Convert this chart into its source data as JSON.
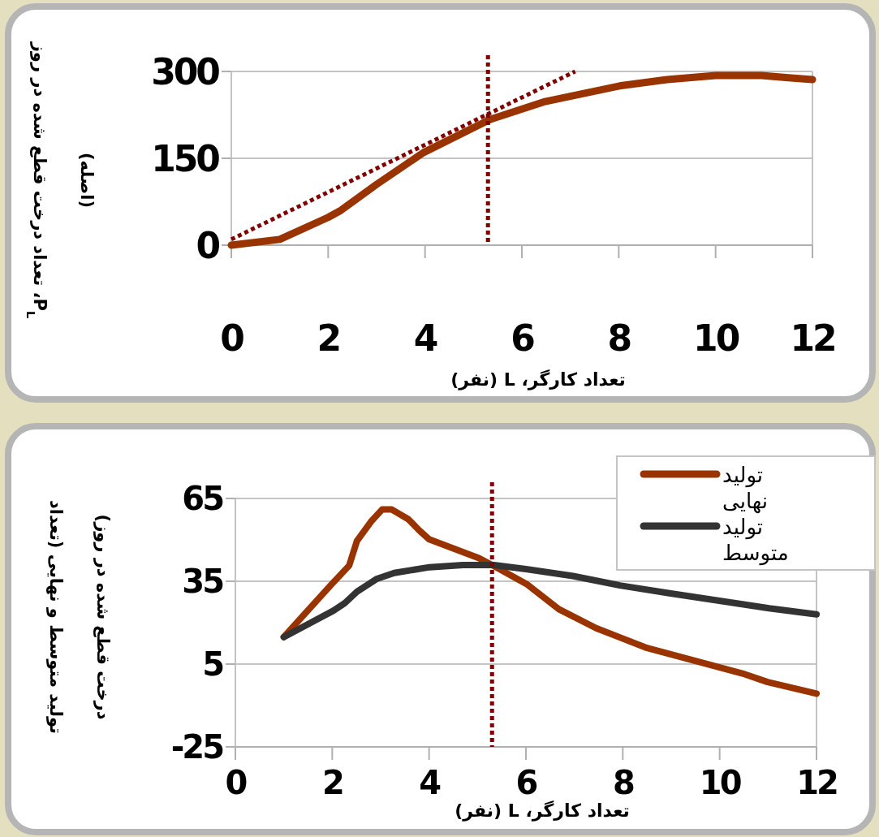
{
  "chart_data": [
    {
      "type": "line",
      "xlabel": "تعداد کارگر، L (نفر)",
      "ylabel": "P$_{L}$، تعداد درخت قطع شده در روز\n(اصله)",
      "xlim": [
        0,
        12
      ],
      "ylim": [
        0,
        300
      ],
      "xticks": [
        0,
        2,
        4,
        6,
        8,
        10,
        12
      ],
      "yticks": [
        0,
        150,
        300
      ],
      "grid": "y",
      "series": [
        {
          "color": "#993300",
          "x": [
            0,
            1,
            2,
            2.26,
            3,
            3.97,
            5.34,
            6.48,
            8.02,
            9,
            10,
            10.95,
            11.5,
            12
          ],
          "values": [
            0,
            10,
            48,
            60,
            105,
            160,
            217,
            248,
            275,
            286,
            293,
            293,
            289,
            286
          ]
        },
        {
          "color": "#800000",
          "line_style": "dotted",
          "x": [
            0,
            7.1
          ],
          "values": [
            10,
            300
          ]
        }
      ],
      "ref_lines": [
        {
          "axis": "x",
          "value": 5.3,
          "color": "#800000",
          "line_style": "dotted"
        }
      ]
    },
    {
      "type": "line",
      "xlabel": "تعداد کارگر، L (نفر)",
      "ylabel": "تولید متوسط و نهایی (تعداد\nدرخت قطع شده در روز)",
      "xlim": [
        0,
        12
      ],
      "ylim": [
        -25,
        65
      ],
      "xticks": [
        0,
        2,
        4,
        6,
        8,
        10,
        12
      ],
      "yticks": [
        -25,
        5,
        35,
        65
      ],
      "grid": "y",
      "legend": "top right",
      "series": [
        {
          "name": "تولید نهایی",
          "color": "#993300",
          "x": [
            1,
            1.98,
            2.35,
            2.51,
            2.8,
            3.03,
            3.23,
            3.57,
            3.8,
            4,
            5.03,
            5.34,
            6.03,
            6.68,
            7.45,
            8.47,
            10.47,
            10.99,
            12
          ],
          "values": [
            14.8,
            33.8,
            40.7,
            49.6,
            56.6,
            61,
            61,
            57.5,
            53.4,
            50.2,
            43.4,
            40.5,
            33.8,
            24.9,
            18,
            11,
            1.6,
            -1.5,
            -5.7
          ]
        },
        {
          "name": "تولید متوسط",
          "color": "#333333",
          "x": [
            1,
            2.02,
            2.26,
            2.51,
            2.91,
            3.28,
            4.01,
            4.7,
            5.34,
            6,
            6.97,
            7.94,
            8.99,
            10.05,
            11.02,
            12
          ],
          "values": [
            14.8,
            24.3,
            27.1,
            31.2,
            35.8,
            38,
            40.1,
            40.9,
            40.9,
            39.4,
            36.9,
            33.5,
            30.6,
            27.8,
            25.2,
            23
          ]
        }
      ],
      "ref_lines": [
        {
          "axis": "x",
          "value": 5.3,
          "color": "#800000",
          "line_style": "dotted"
        }
      ]
    }
  ]
}
